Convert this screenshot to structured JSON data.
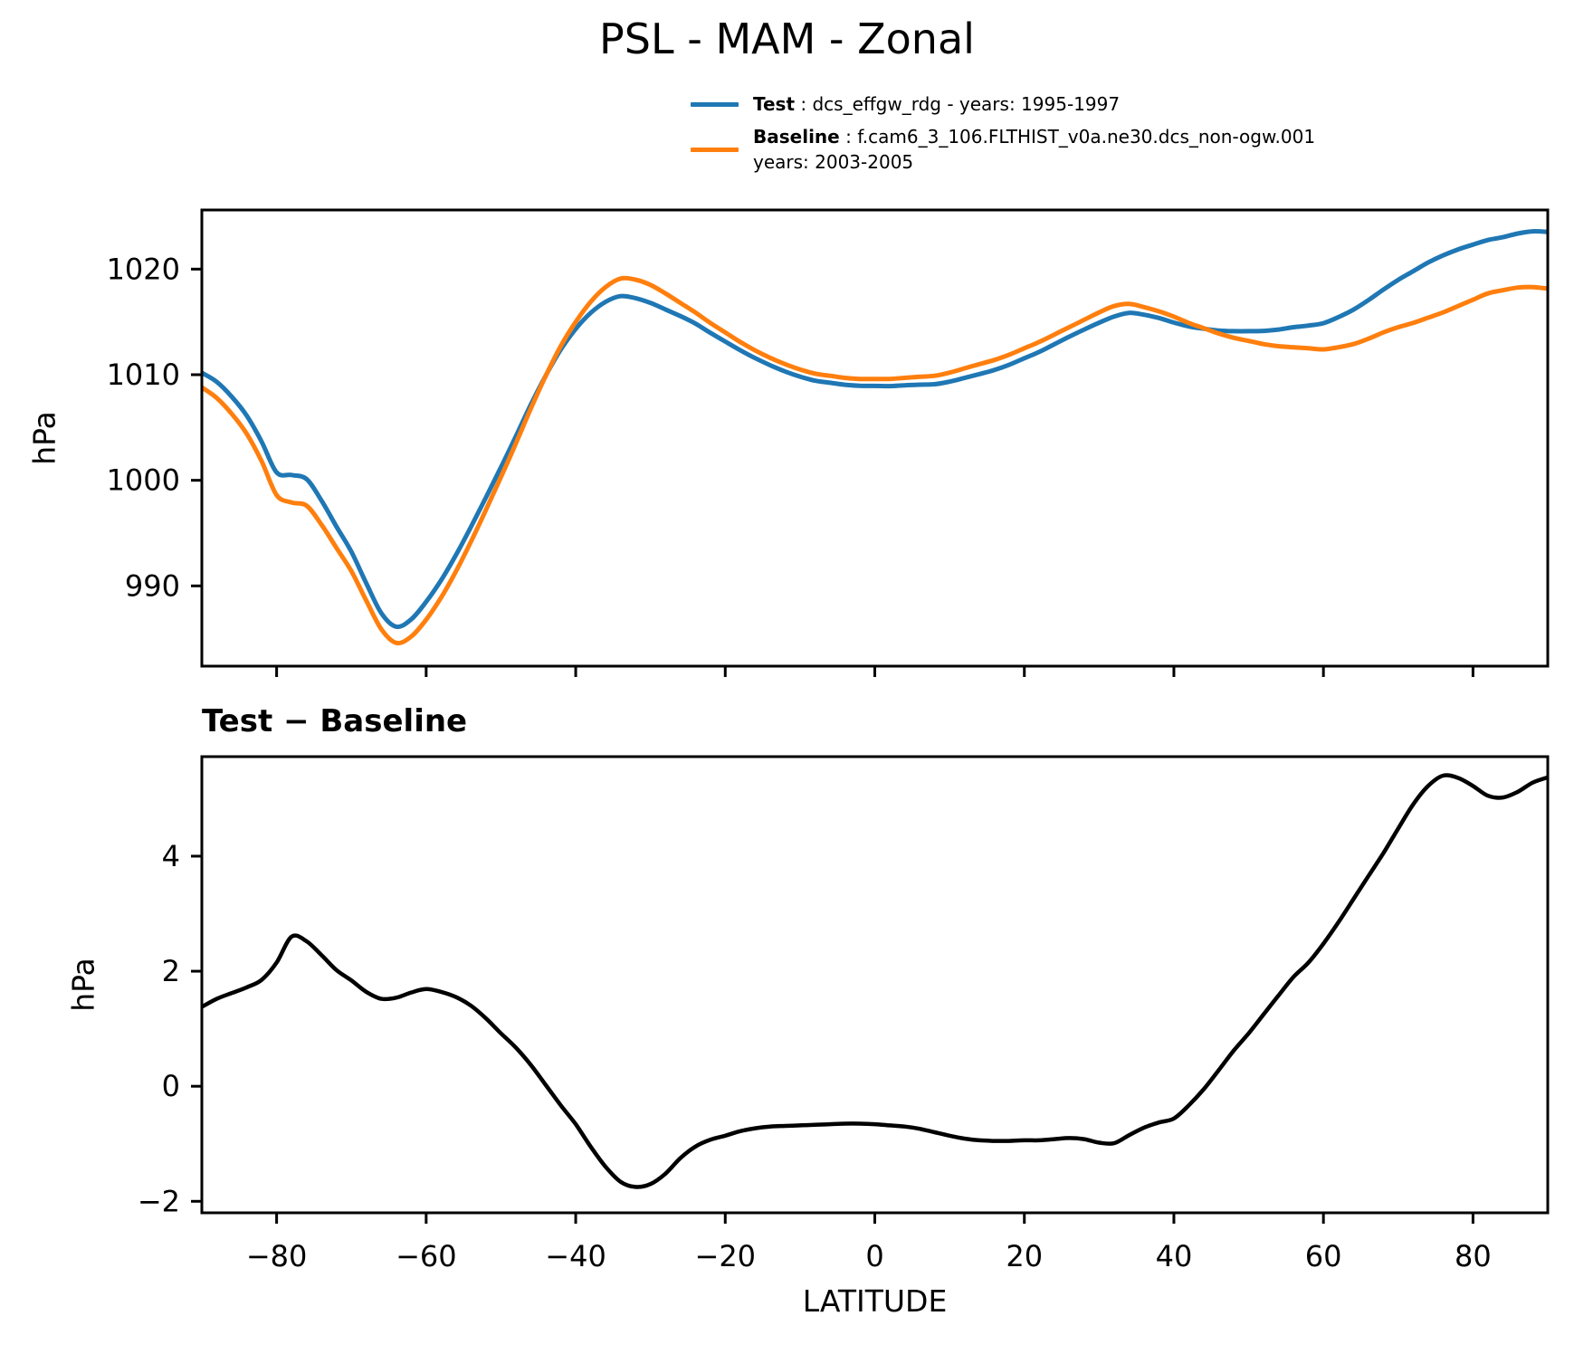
{
  "figure_title": "PSL - MAM - Zonal",
  "colors": {
    "test": "#1f77b4",
    "baseline": "#ff7f0e",
    "diff": "#000000",
    "axis": "#000000",
    "background": "#ffffff"
  },
  "chart_data": [
    {
      "type": "line",
      "title": "PSL - MAM - Zonal",
      "ylabel": "hPa",
      "xlabel": "",
      "xlim": [
        -90,
        90
      ],
      "ylim": [
        982.4,
        1025.6
      ],
      "xticks": [
        -80,
        -60,
        -40,
        -20,
        0,
        20,
        40,
        60,
        80
      ],
      "yticks": [
        990,
        1000,
        1010,
        1020
      ],
      "grid": false,
      "legend_position": "upper right above axes",
      "x": [
        -90,
        -88,
        -86,
        -84,
        -82,
        -80,
        -78,
        -76,
        -74,
        -72,
        -70,
        -68,
        -66,
        -64,
        -62,
        -60,
        -58,
        -56,
        -54,
        -52,
        -50,
        -48,
        -46,
        -44,
        -42,
        -40,
        -38,
        -36,
        -34,
        -32,
        -30,
        -28,
        -26,
        -24,
        -22,
        -20,
        -18,
        -16,
        -14,
        -12,
        -10,
        -8,
        -6,
        -4,
        -2,
        0,
        2,
        4,
        6,
        8,
        10,
        12,
        14,
        16,
        18,
        20,
        22,
        24,
        26,
        28,
        30,
        32,
        34,
        36,
        38,
        40,
        42,
        44,
        46,
        48,
        50,
        52,
        54,
        56,
        58,
        60,
        62,
        64,
        66,
        68,
        70,
        72,
        74,
        76,
        78,
        80,
        82,
        84,
        86,
        88,
        90
      ],
      "series": [
        {
          "name": "Test",
          "legend_name": "Test",
          "legend_desc": " : dcs_effgw_rdg - years: 1995-1997",
          "color": "#1f77b4",
          "linewidth": 5,
          "values": [
            1010.18,
            1009.32,
            1007.92,
            1006.12,
            1003.65,
            1000.75,
            1000.5,
            1000.12,
            998.08,
            995.62,
            993.24,
            990.24,
            987.42,
            986.14,
            986.83,
            988.49,
            990.54,
            992.95,
            995.6,
            998.38,
            1001.22,
            1004.17,
            1007.17,
            1009.92,
            1012.37,
            1014.34,
            1015.85,
            1016.9,
            1017.44,
            1017.25,
            1016.8,
            1016.18,
            1015.55,
            1014.85,
            1013.97,
            1013.14,
            1012.32,
            1011.57,
            1010.9,
            1010.31,
            1009.82,
            1009.43,
            1009.24,
            1009.05,
            1008.95,
            1008.94,
            1008.92,
            1009.0,
            1009.06,
            1009.1,
            1009.34,
            1009.69,
            1010.06,
            1010.45,
            1010.95,
            1011.56,
            1012.16,
            1012.88,
            1013.6,
            1014.28,
            1014.92,
            1015.51,
            1015.85,
            1015.68,
            1015.37,
            1014.94,
            1014.57,
            1014.35,
            1014.18,
            1014.12,
            1014.12,
            1014.15,
            1014.28,
            1014.5,
            1014.65,
            1014.88,
            1015.45,
            1016.15,
            1017.05,
            1018.05,
            1018.98,
            1019.8,
            1020.62,
            1021.3,
            1021.86,
            1022.32,
            1022.75,
            1023.02,
            1023.37,
            1023.58,
            1023.52
          ]
        },
        {
          "name": "Baseline",
          "legend_name": "Baseline",
          "legend_desc": " : f.cam6_3_106.FLTHIST_v0a.ne30.dcs_non-ogw.001",
          "legend_desc_line2": "years: 2003-2005",
          "color": "#ff7f0e",
          "linewidth": 5,
          "values": [
            1008.8,
            1007.8,
            1006.3,
            1004.4,
            1001.8,
            998.6,
            997.9,
            997.6,
            995.8,
            993.6,
            991.4,
            988.6,
            985.9,
            984.6,
            985.2,
            986.8,
            988.9,
            991.4,
            994.2,
            997.2,
            1000.3,
            1003.5,
            1006.8,
            1009.9,
            1012.7,
            1015.0,
            1016.9,
            1018.3,
            1019.1,
            1019.0,
            1018.5,
            1017.7,
            1016.8,
            1015.9,
            1014.9,
            1014.0,
            1013.1,
            1012.3,
            1011.6,
            1011.0,
            1010.5,
            1010.1,
            1009.9,
            1009.7,
            1009.6,
            1009.6,
            1009.6,
            1009.7,
            1009.8,
            1009.9,
            1010.2,
            1010.6,
            1011.0,
            1011.4,
            1011.9,
            1012.5,
            1013.1,
            1013.8,
            1014.5,
            1015.2,
            1015.9,
            1016.5,
            1016.7,
            1016.4,
            1016.0,
            1015.5,
            1014.9,
            1014.4,
            1013.9,
            1013.5,
            1013.2,
            1012.9,
            1012.7,
            1012.6,
            1012.5,
            1012.4,
            1012.6,
            1012.9,
            1013.4,
            1014.0,
            1014.5,
            1014.9,
            1015.4,
            1015.9,
            1016.5,
            1017.1,
            1017.7,
            1018.0,
            1018.25,
            1018.3,
            1018.15
          ]
        }
      ]
    },
    {
      "type": "line",
      "title": "Test − Baseline",
      "ylabel": "hPa",
      "xlabel": "LATITUDE",
      "xlim": [
        -90,
        90
      ],
      "ylim": [
        -2.2,
        5.73
      ],
      "xticks": [
        -80,
        -60,
        -40,
        -20,
        0,
        20,
        40,
        60,
        80
      ],
      "yticks": [
        -2,
        0,
        2,
        4
      ],
      "grid": false,
      "x": [
        -90,
        -88,
        -86,
        -84,
        -82,
        -80,
        -78,
        -76,
        -74,
        -72,
        -70,
        -68,
        -66,
        -64,
        -62,
        -60,
        -58,
        -56,
        -54,
        -52,
        -50,
        -48,
        -46,
        -44,
        -42,
        -40,
        -38,
        -36,
        -34,
        -32,
        -30,
        -28,
        -26,
        -24,
        -22,
        -20,
        -18,
        -16,
        -14,
        -12,
        -10,
        -8,
        -6,
        -4,
        -2,
        0,
        2,
        4,
        6,
        8,
        10,
        12,
        14,
        16,
        18,
        20,
        22,
        24,
        26,
        28,
        30,
        32,
        34,
        36,
        38,
        40,
        42,
        44,
        46,
        48,
        50,
        52,
        54,
        56,
        58,
        60,
        62,
        64,
        66,
        68,
        70,
        72,
        74,
        76,
        78,
        80,
        82,
        84,
        86,
        88,
        90
      ],
      "series": [
        {
          "name": "Test minus Baseline",
          "color": "#000000",
          "linewidth": 4.5,
          "values": [
            1.38,
            1.52,
            1.62,
            1.72,
            1.85,
            2.15,
            2.6,
            2.52,
            2.28,
            2.02,
            1.84,
            1.64,
            1.52,
            1.54,
            1.63,
            1.69,
            1.64,
            1.55,
            1.4,
            1.18,
            0.92,
            0.67,
            0.37,
            0.02,
            -0.33,
            -0.66,
            -1.05,
            -1.4,
            -1.66,
            -1.75,
            -1.7,
            -1.52,
            -1.25,
            -1.05,
            -0.93,
            -0.86,
            -0.78,
            -0.73,
            -0.7,
            -0.69,
            -0.68,
            -0.67,
            -0.66,
            -0.65,
            -0.65,
            -0.66,
            -0.68,
            -0.7,
            -0.74,
            -0.8,
            -0.86,
            -0.91,
            -0.94,
            -0.95,
            -0.95,
            -0.94,
            -0.94,
            -0.92,
            -0.9,
            -0.92,
            -0.98,
            -0.99,
            -0.85,
            -0.72,
            -0.63,
            -0.56,
            -0.33,
            -0.05,
            0.28,
            0.62,
            0.92,
            1.25,
            1.58,
            1.9,
            2.15,
            2.48,
            2.85,
            3.25,
            3.65,
            4.05,
            4.48,
            4.9,
            5.22,
            5.4,
            5.36,
            5.22,
            5.05,
            5.02,
            5.12,
            5.28,
            5.37
          ]
        }
      ]
    }
  ]
}
